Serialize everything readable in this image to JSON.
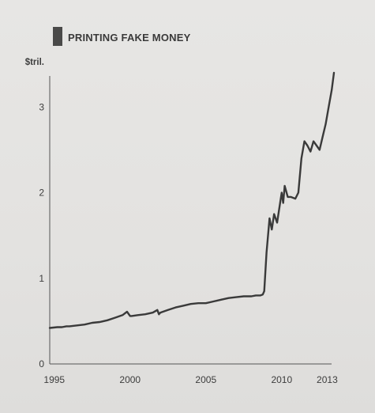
{
  "title": "PRINTING FAKE MONEY",
  "colors": {
    "title_marker": "#4a4a49",
    "line": "#3a3a3a",
    "axis": "#555555",
    "background": "#e5e4e2"
  },
  "chart_data": {
    "type": "line",
    "title": "PRINTING FAKE MONEY",
    "xlabel": "",
    "ylabel": "$tril.",
    "xlim": [
      1994.7,
      2013.5
    ],
    "ylim": [
      0,
      3.4
    ],
    "x_ticks": [
      1995,
      2000,
      2005,
      2010,
      2013
    ],
    "x_tick_labels": [
      "1995",
      "2000",
      "2005",
      "2010",
      "2013"
    ],
    "y_ticks": [
      0,
      1,
      2,
      3
    ],
    "y_tick_labels": [
      "0",
      "1",
      "2",
      "3"
    ],
    "y_unit_label": "$tril.",
    "grid": false,
    "legend": "none",
    "series": [
      {
        "x": [
          1994.7,
          1995.2,
          1995.5,
          1995.8,
          1996.0,
          1996.5,
          1997.0,
          1997.5,
          1998.0,
          1998.5,
          1999.0,
          1999.5,
          1999.8,
          2000.0,
          2000.1,
          2000.5,
          2001.0,
          2001.5,
          2001.8,
          2001.9,
          2002.0,
          2002.5,
          2003.0,
          2003.5,
          2004.0,
          2004.5,
          2005.0,
          2005.5,
          2006.0,
          2006.5,
          2007.0,
          2007.5,
          2007.8,
          2008.0,
          2008.3,
          2008.6,
          2008.75,
          2008.85,
          2009.0,
          2009.2,
          2009.35,
          2009.5,
          2009.7,
          2010.0,
          2010.1,
          2010.2,
          2010.4,
          2010.6,
          2010.9,
          2011.1,
          2011.3,
          2011.5,
          2011.7,
          2011.9,
          2012.1,
          2012.3,
          2012.5,
          2012.7,
          2012.9,
          2013.1,
          2013.3,
          2013.45
        ],
        "y": [
          0.42,
          0.43,
          0.43,
          0.44,
          0.44,
          0.45,
          0.46,
          0.48,
          0.49,
          0.51,
          0.54,
          0.57,
          0.61,
          0.56,
          0.56,
          0.57,
          0.58,
          0.6,
          0.63,
          0.58,
          0.6,
          0.63,
          0.66,
          0.68,
          0.7,
          0.71,
          0.71,
          0.73,
          0.75,
          0.77,
          0.78,
          0.79,
          0.79,
          0.79,
          0.8,
          0.8,
          0.81,
          0.85,
          1.3,
          1.7,
          1.57,
          1.75,
          1.65,
          2.0,
          1.88,
          2.08,
          1.95,
          1.95,
          1.93,
          2.0,
          2.4,
          2.6,
          2.55,
          2.48,
          2.6,
          2.55,
          2.5,
          2.65,
          2.8,
          3.0,
          3.2,
          3.4
        ]
      }
    ]
  }
}
